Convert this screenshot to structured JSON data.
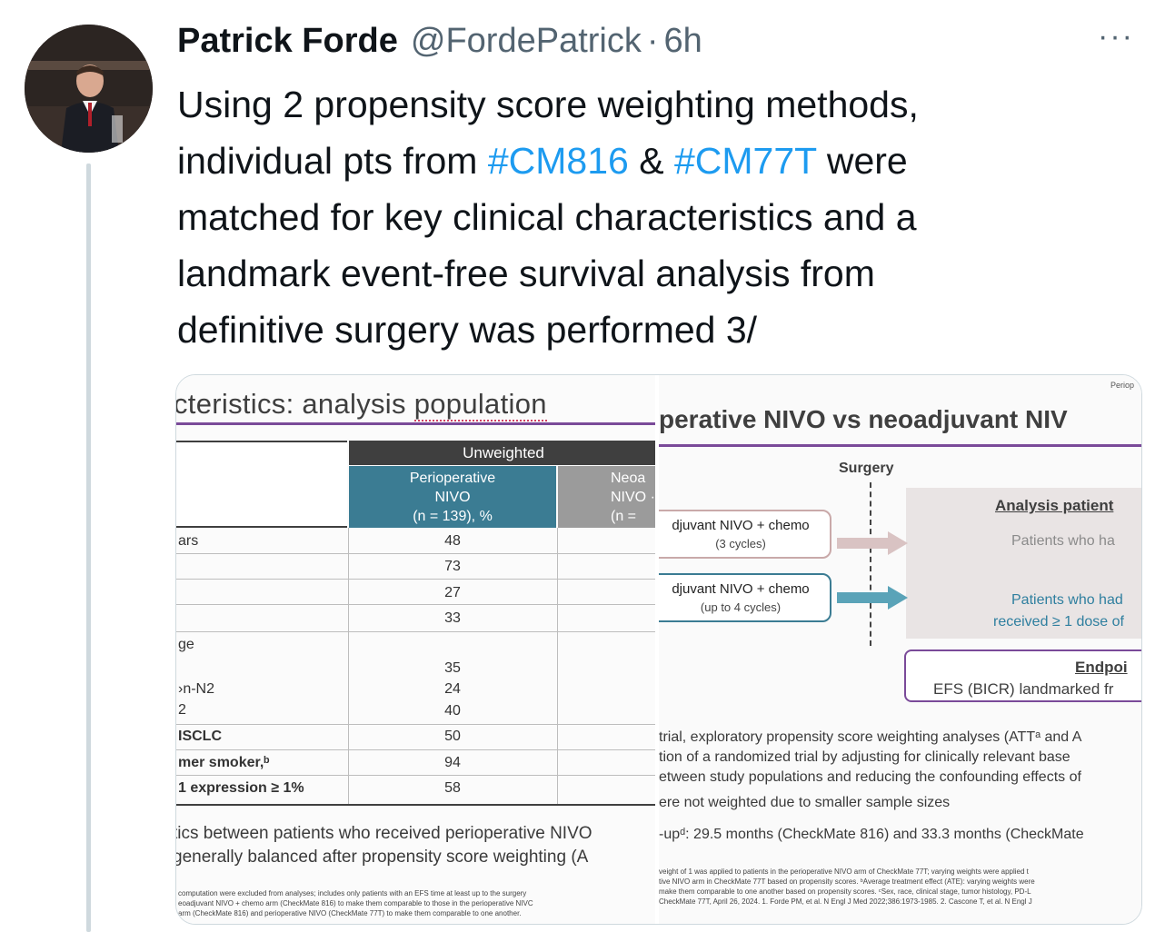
{
  "tweet": {
    "author_name": "Patrick Forde",
    "author_handle": "@FordePatrick",
    "separator": "·",
    "timestamp": "6h",
    "more_icon": "···",
    "text_line1": "Using 2 propensity score weighting methods,",
    "text_line2_a": "individual pts from ",
    "hashtag1": "#CM816",
    "text_line2_b": " & ",
    "hashtag2": "#CM77T",
    "text_line2_c": " were",
    "text_line3": "matched for key clinical characteristics and a",
    "text_line4": "landmark event-free survival analysis from",
    "text_line5": "definitive surgery was performed 3/"
  },
  "colors": {
    "accent": "#1d9bf0",
    "text": "#0f1419",
    "muted": "#536471",
    "slide_teal": "#3b7c93",
    "slide_purple": "#7a4a99"
  },
  "slide_left": {
    "title_a": "cteristics: analysis ",
    "title_b": "population",
    "unweighted": "Unweighted",
    "col1_l1": "Perioperative",
    "col1_l2": "NIVO",
    "col1_l3": "(n = 139), %",
    "col2_l1": "Neoa",
    "col2_l2": "NIVO ·",
    "col2_l3": "(n =",
    "rows": [
      {
        "label": "ars",
        "value": "48"
      },
      {
        "label": "",
        "value": "73"
      },
      {
        "label": "",
        "value": "27"
      },
      {
        "label": "",
        "value": "33"
      },
      {
        "label": "ge",
        "value": ""
      },
      {
        "label": "",
        "value": "35"
      },
      {
        "label": "›n-N2",
        "value": "24"
      },
      {
        "label": "2",
        "value": "40"
      },
      {
        "label": "ISCLC",
        "value": "50"
      },
      {
        "label": "mer smoker,ᵇ",
        "value": "94"
      },
      {
        "label": "1 expression ≥ 1%",
        "value": "58"
      }
    ],
    "foot1": "tics between patients who received perioperative NIVO",
    "foot2": "generally balanced after propensity score weighting (A",
    "fine1": "computation were excluded from analyses; includes only patients with an EFS time at least up to the surgery",
    "fine2": "eoadjuvant NIVO + chemo arm (CheckMate 816) to make them comparable to those in the perioperative NIVC",
    "fine3": "arm (CheckMate 816) and perioperative NIVO (CheckMate 77T) to make them comparable to one another."
  },
  "slide_right": {
    "tag": "Periop",
    "title": "perative NIVO vs neoadjuvant NIV",
    "surgery": "Surgery",
    "arm1_l1": "djuvant NIVO + chemo",
    "arm1_l2": "(3 cycles)",
    "arm2_l1": "djuvant NIVO + chemo",
    "arm2_l2": "(up to 4 cycles)",
    "ap_title": "Analysis patient",
    "ap_line1": "Patients who ha",
    "ap_line2a": "Patients who had",
    "ap_line2b": "received ≥ 1 dose of",
    "ep_title": "Endpoi",
    "ep_line": "EFS (BICR) landmarked fr",
    "text1": "trial, exploratory propensity score weighting analyses (ATTᵃ and A",
    "text2": "tion of a randomized trial by adjusting for clinically relevant base",
    "text3": "etween study populations and reducing the confounding effects of",
    "text4": "ere not weighted due to smaller sample sizes",
    "text5": "-upᵈ: 29.5 months (CheckMate 816) and 33.3 months (CheckMate",
    "fine1": "veight of 1 was applied to patients in the perioperative NIVO arm of CheckMate 77T; varying weights were applied t",
    "fine2": "tive NIVO arm in CheckMate 77T based on propensity scores. ᵇAverage treatment effect (ATE): varying weights were",
    "fine3": "make them comparable to one another based on propensity scores. ᶜSex, race, clinical stage, tumor histology, PD-L",
    "fine4": "CheckMate 77T, April 26, 2024. 1. Forde PM, et al. N Engl J Med 2022;386:1973-1985. 2. Cascone T, et al. N Engl J"
  }
}
